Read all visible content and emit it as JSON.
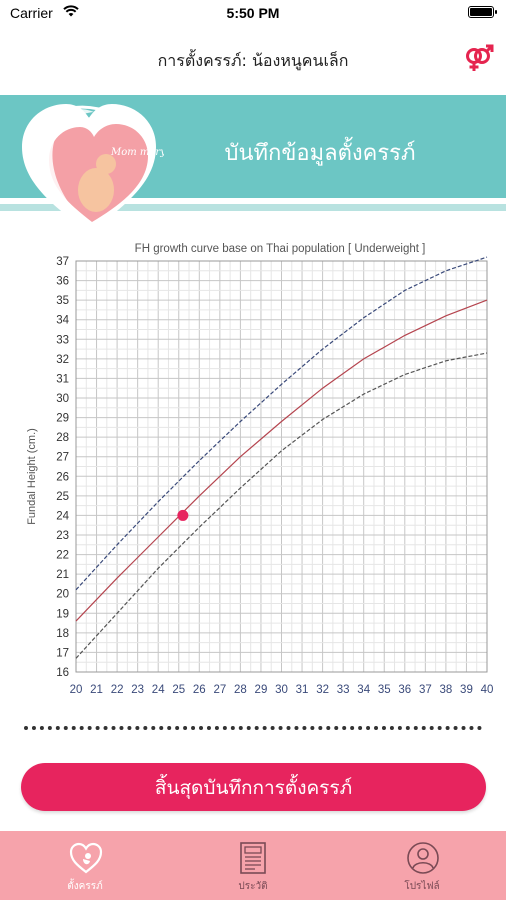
{
  "status": {
    "carrier": "Carrier",
    "time": "5:50 PM"
  },
  "header": {
    "title": "การตั้งครรภ์: น้องหนูคนเล็ก",
    "gender_icon": "gender-symbol-icon",
    "accent": "#e5244f"
  },
  "banner": {
    "title": "บันทึกข้อมูลตั้งครรภ์",
    "logo_text": "Mom mory",
    "color": "#6cc6c4"
  },
  "chart_data": {
    "type": "line",
    "title": "FH growth curve base on Thai population [ Underweight ]",
    "xlabel": "",
    "ylabel": "Fundal Height (cm.)",
    "xlim": [
      20,
      40
    ],
    "ylim": [
      16,
      37
    ],
    "x_ticks": [
      20,
      21,
      22,
      23,
      24,
      25,
      26,
      27,
      28,
      29,
      30,
      31,
      32,
      33,
      34,
      35,
      36,
      37,
      38,
      39,
      40
    ],
    "y_ticks": [
      16,
      17,
      18,
      19,
      20,
      21,
      22,
      23,
      24,
      25,
      26,
      27,
      28,
      29,
      30,
      31,
      32,
      33,
      34,
      35,
      36,
      37
    ],
    "grid": true,
    "series": [
      {
        "style": "dashed",
        "color": "#3a4a7a",
        "x": [
          20,
          22,
          24,
          26,
          28,
          30,
          32,
          34,
          36,
          38,
          40
        ],
        "y": [
          20.2,
          22.5,
          24.7,
          26.8,
          28.8,
          30.7,
          32.5,
          34.1,
          35.5,
          36.5,
          37.2
        ]
      },
      {
        "style": "solid",
        "color": "#b5454f",
        "x": [
          20,
          22,
          24,
          26,
          28,
          30,
          32,
          34,
          36,
          38,
          40
        ],
        "y": [
          18.6,
          20.8,
          22.9,
          25.0,
          27.0,
          28.8,
          30.5,
          32.0,
          33.2,
          34.2,
          35.0
        ]
      },
      {
        "style": "dashed",
        "color": "#555555",
        "x": [
          20,
          22,
          24,
          26,
          28,
          30,
          32,
          34,
          36,
          38,
          40
        ],
        "y": [
          16.7,
          19.0,
          21.3,
          23.4,
          25.4,
          27.3,
          28.9,
          30.2,
          31.2,
          31.9,
          32.3
        ]
      }
    ],
    "points": [
      {
        "x": 25.2,
        "y": 24.0,
        "color": "#e7245e"
      }
    ]
  },
  "end_button": {
    "label": "สิ้นสุดบันทึกการตั้งครรภ์"
  },
  "tabs": [
    {
      "label": "ตั้งครรภ์",
      "icon": "pregnancy-heart-icon",
      "active": true
    },
    {
      "label": "ประวัติ",
      "icon": "document-history-icon",
      "active": false
    },
    {
      "label": "โปรไฟล์",
      "icon": "profile-user-icon",
      "active": false
    }
  ]
}
